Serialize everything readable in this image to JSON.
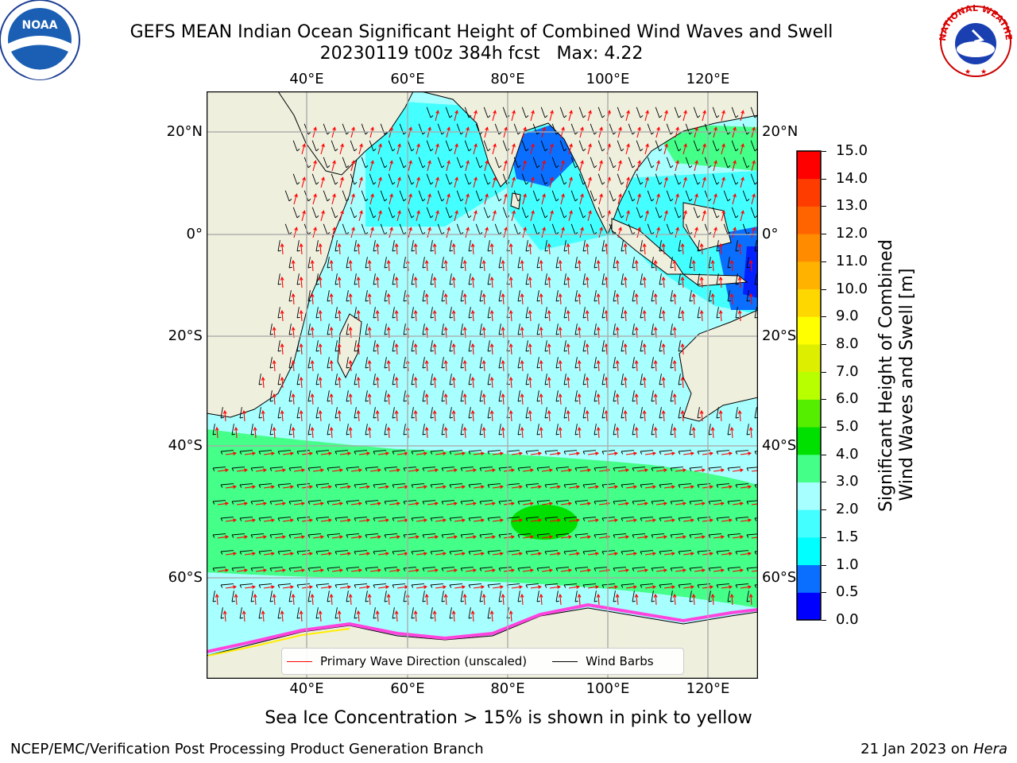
{
  "title": {
    "line1": "GEFS MEAN Indian Ocean Significant Height of Combined Wind Waves and Swell",
    "line2": "20230119 t00z 384h fcst   Max: 4.22"
  },
  "map": {
    "lon_ticks_top": [
      "40°E",
      "60°E",
      "80°E",
      "100°E",
      "120°E"
    ],
    "lon_ticks_bottom": [
      "40°E",
      "60°E",
      "80°E",
      "100°E",
      "120°E"
    ],
    "lat_ticks_left": [
      "20°N",
      "0°",
      "20°S",
      "40°S",
      "60°S"
    ],
    "lat_ticks_right": [
      "20°N",
      "0°",
      "20°S",
      "40°S",
      "60°S"
    ],
    "lon_range": [
      20,
      130
    ],
    "lat_range": [
      -73,
      28
    ],
    "grid": true,
    "colors": {
      "land": "#efefde",
      "arrow": "#ff0000",
      "barb": "#000000",
      "ice": "#ff44dd"
    }
  },
  "legend": {
    "wave_label": "Primary Wave Direction (unscaled)",
    "barb_label": "Wind Barbs"
  },
  "colorbar": {
    "title": "Significant Height of Combined\nWind Waves and Swell [m]",
    "ticks": [
      "0.0",
      "0.5",
      "1.0",
      "1.5",
      "2.0",
      "3.0",
      "4.0",
      "5.0",
      "6.0",
      "7.0",
      "8.0",
      "9.0",
      "10.0",
      "11.0",
      "12.0",
      "13.0",
      "14.0",
      "15.0"
    ],
    "colors": [
      "#0000ff",
      "#0a6eff",
      "#00ffff",
      "#44ffff",
      "#a8ffff",
      "#44ff88",
      "#00e000",
      "#55ee00",
      "#b8ff00",
      "#ddee00",
      "#ffff00",
      "#ffd700",
      "#ffb300",
      "#ff8c00",
      "#ff6400",
      "#ff3c00",
      "#ff0000"
    ]
  },
  "caption": "Sea Ice Concentration > 15% is shown in pink to yellow",
  "footer": {
    "left": "NCEP/EMC/Verification Post Processing Product Generation Branch",
    "right_date": "21 Jan 2023 on ",
    "right_host": "Hera"
  },
  "logos": {
    "noaa_text": "NOAA",
    "nws_text": "NATIONAL WEATHER SERVICE"
  }
}
